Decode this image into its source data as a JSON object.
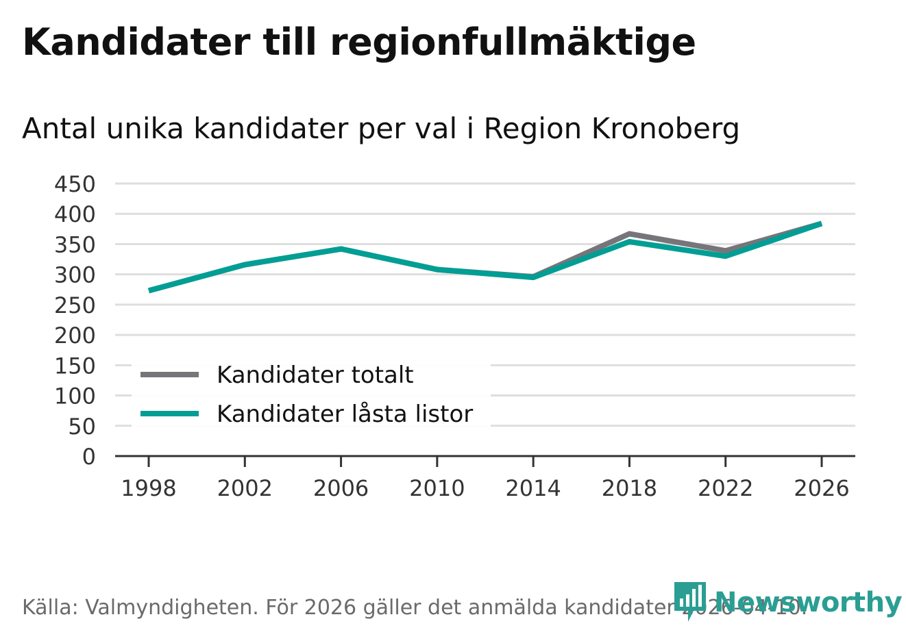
{
  "colors": {
    "total": "#77757a",
    "locked": "#009e94",
    "grid": "#dedede",
    "axis": "#333333"
  },
  "chart_data": {
    "type": "line",
    "title": "Kandidater till regionfullmäktige",
    "subtitle": "Antal unika kandidater per val i Region Kronoberg",
    "x": [
      "1998",
      "2002",
      "2006",
      "2010",
      "2014",
      "2018",
      "2022",
      "2026"
    ],
    "ylim": [
      0,
      450
    ],
    "yticks": [
      0,
      50,
      100,
      150,
      200,
      250,
      300,
      350,
      400,
      450
    ],
    "legend_position": "bottom-left",
    "series": [
      {
        "name": "Kandidater totalt",
        "color": "#77757a",
        "values": [
          273,
          316,
          342,
          308,
          296,
          367,
          339,
          384
        ]
      },
      {
        "name": "Kandidater låsta listor",
        "color": "#009e94",
        "values": [
          273,
          316,
          342,
          308,
          295,
          354,
          330,
          384
        ]
      }
    ]
  },
  "source": "Källa: Valmyndigheten. För 2026 gäller det anmälda kandidater 2026-04-10.",
  "logo_text": "Newsworthy"
}
